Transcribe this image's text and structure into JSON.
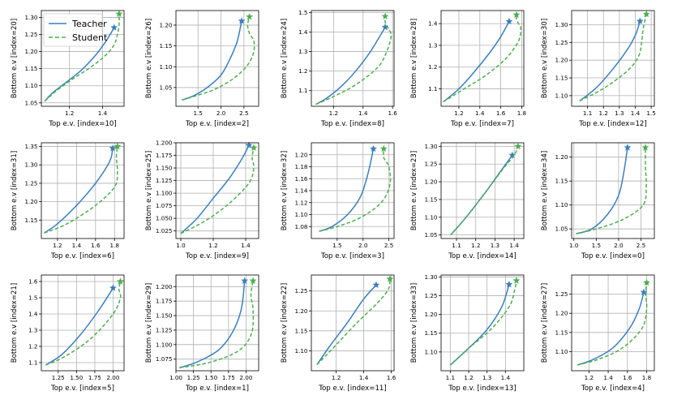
{
  "colors": {
    "teacher": "#3a7fbf",
    "student": "#4caf50"
  },
  "legend": {
    "teacher_label": "Teacher",
    "student_label": "Student"
  },
  "chart_data": [
    {
      "type": "line",
      "xlabel": "Top e.v. [index=10]",
      "ylabel": "Bottom e.v [index=20]",
      "xlim": [
        1.03,
        1.53
      ],
      "ylim": [
        1.04,
        1.32
      ],
      "xticks": [
        1.2,
        1.4
      ],
      "xtick_labels": [
        "1.2",
        "1.4"
      ],
      "yticks": [
        1.05,
        1.1,
        1.15,
        1.2,
        1.25,
        1.3
      ],
      "ytick_labels": [
        "1.05",
        "1.10",
        "1.15",
        "1.20",
        "1.25",
        "1.30"
      ],
      "series": [
        {
          "name": "Teacher",
          "x": [
            1.05,
            1.1,
            1.18,
            1.27,
            1.35,
            1.42,
            1.47
          ],
          "y": [
            1.055,
            1.08,
            1.11,
            1.145,
            1.185,
            1.23,
            1.27
          ]
        },
        {
          "name": "Student",
          "x": [
            1.05,
            1.12,
            1.22,
            1.33,
            1.42,
            1.47,
            1.49,
            1.5,
            1.5
          ],
          "y": [
            1.055,
            1.085,
            1.12,
            1.155,
            1.19,
            1.22,
            1.25,
            1.28,
            1.31
          ]
        }
      ]
    },
    {
      "type": "line",
      "xlabel": "Top e.v. [index=2]",
      "ylabel": "Bottom e.v [index=26]",
      "xlim": [
        1.02,
        2.82
      ],
      "ylim": [
        1.005,
        1.235
      ],
      "xticks": [
        1.5,
        2.0,
        2.5
      ],
      "xtick_labels": [
        "1.5",
        "2.0",
        "2.5"
      ],
      "yticks": [
        1.05,
        1.1,
        1.15,
        1.2
      ],
      "ytick_labels": [
        "1.05",
        "1.10",
        "1.15",
        "1.20"
      ],
      "series": [
        {
          "name": "Teacher",
          "x": [
            1.15,
            1.4,
            1.7,
            2.0,
            2.2,
            2.35,
            2.45
          ],
          "y": [
            1.02,
            1.03,
            1.05,
            1.08,
            1.12,
            1.16,
            1.21
          ]
        },
        {
          "name": "Student",
          "x": [
            1.15,
            1.45,
            1.85,
            2.25,
            2.55,
            2.7,
            2.72,
            2.62,
            2.58,
            2.62
          ],
          "y": [
            1.02,
            1.03,
            1.045,
            1.07,
            1.1,
            1.13,
            1.16,
            1.18,
            1.2,
            1.22
          ]
        }
      ]
    },
    {
      "type": "line",
      "xlabel": "Top e.v. [index=8]",
      "ylabel": "Bottom e.v [index=24]",
      "xlim": [
        1.05,
        1.61
      ],
      "ylim": [
        1.02,
        1.51
      ],
      "xticks": [
        1.2,
        1.4,
        1.6
      ],
      "xtick_labels": [
        "1.2",
        "1.4",
        "1.6"
      ],
      "yticks": [
        1.1,
        1.2,
        1.3,
        1.4,
        1.5
      ],
      "ytick_labels": [
        "1.1",
        "1.2",
        "1.3",
        "1.4",
        "1.5"
      ],
      "series": [
        {
          "name": "Teacher",
          "x": [
            1.08,
            1.15,
            1.25,
            1.35,
            1.45,
            1.55
          ],
          "y": [
            1.03,
            1.06,
            1.12,
            1.2,
            1.3,
            1.425
          ]
        },
        {
          "name": "Student",
          "x": [
            1.08,
            1.2,
            1.35,
            1.5,
            1.56,
            1.59,
            1.57,
            1.55,
            1.55
          ],
          "y": [
            1.03,
            1.07,
            1.13,
            1.22,
            1.3,
            1.38,
            1.42,
            1.45,
            1.48
          ]
        }
      ]
    },
    {
      "type": "line",
      "xlabel": "Top e.v. [index=7]",
      "ylabel": "Bottom e.v [index=28]",
      "xlim": [
        1.03,
        1.82
      ],
      "ylim": [
        1.02,
        1.46
      ],
      "xticks": [
        1.2,
        1.4,
        1.6,
        1.8
      ],
      "xtick_labels": [
        "1.2",
        "1.4",
        "1.6",
        "1.8"
      ],
      "yticks": [
        1.1,
        1.2,
        1.3,
        1.4
      ],
      "ytick_labels": [
        "1.1",
        "1.2",
        "1.3",
        "1.4"
      ],
      "series": [
        {
          "name": "Teacher",
          "x": [
            1.05,
            1.2,
            1.35,
            1.5,
            1.6,
            1.68
          ],
          "y": [
            1.04,
            1.1,
            1.18,
            1.27,
            1.34,
            1.41
          ]
        },
        {
          "name": "Student",
          "x": [
            1.05,
            1.25,
            1.45,
            1.65,
            1.77,
            1.79,
            1.77,
            1.75,
            1.75
          ],
          "y": [
            1.04,
            1.1,
            1.16,
            1.24,
            1.32,
            1.38,
            1.4,
            1.42,
            1.44
          ]
        }
      ]
    },
    {
      "type": "line",
      "xlabel": "Top e.v. [index=12]",
      "ylabel": "Bottom e.v [index=30]",
      "xlim": [
        1.0,
        1.52
      ],
      "ylim": [
        1.07,
        1.34
      ],
      "xticks": [
        1.1,
        1.2,
        1.3,
        1.4,
        1.5
      ],
      "xtick_labels": [
        "1.1",
        "1.2",
        "1.3",
        "1.4",
        "1.5"
      ],
      "yticks": [
        1.1,
        1.15,
        1.2,
        1.25,
        1.3
      ],
      "ytick_labels": [
        "1.10",
        "1.15",
        "1.20",
        "1.25",
        "1.30"
      ],
      "series": [
        {
          "name": "Teacher",
          "x": [
            1.05,
            1.15,
            1.25,
            1.35,
            1.4,
            1.43
          ],
          "y": [
            1.085,
            1.12,
            1.17,
            1.23,
            1.27,
            1.31
          ]
        },
        {
          "name": "Student",
          "x": [
            1.05,
            1.2,
            1.35,
            1.42,
            1.44,
            1.45,
            1.47
          ],
          "y": [
            1.085,
            1.12,
            1.17,
            1.21,
            1.25,
            1.29,
            1.33
          ]
        }
      ]
    },
    {
      "type": "line",
      "xlabel": "Top e.v. [index=6]",
      "ylabel": "Bottom e.v [index=31]",
      "xlim": [
        1.03,
        1.9
      ],
      "ylim": [
        1.1,
        1.36
      ],
      "xticks": [
        1.2,
        1.4,
        1.6,
        1.8
      ],
      "xtick_labels": [
        "1.2",
        "1.4",
        "1.6",
        "1.8"
      ],
      "yticks": [
        1.15,
        1.2,
        1.25,
        1.3,
        1.35
      ],
      "ytick_labels": [
        "1.15",
        "1.20",
        "1.25",
        "1.30",
        "1.35"
      ],
      "series": [
        {
          "name": "Teacher",
          "x": [
            1.06,
            1.2,
            1.4,
            1.6,
            1.75,
            1.78
          ],
          "y": [
            1.115,
            1.14,
            1.19,
            1.25,
            1.31,
            1.345
          ]
        },
        {
          "name": "Student",
          "x": [
            1.06,
            1.3,
            1.6,
            1.8,
            1.83,
            1.82,
            1.83
          ],
          "y": [
            1.115,
            1.14,
            1.19,
            1.24,
            1.28,
            1.32,
            1.35
          ]
        }
      ]
    },
    {
      "type": "line",
      "xlabel": "Top e.v. [index=9]",
      "ylabel": "Bottom e.v [index=25]",
      "xlim": [
        0.97,
        1.48
      ],
      "ylim": [
        1.01,
        1.2
      ],
      "xticks": [
        1.0,
        1.2,
        1.4
      ],
      "xtick_labels": [
        "1.0",
        "1.2",
        "1.4"
      ],
      "yticks": [
        1.025,
        1.05,
        1.075,
        1.1,
        1.125,
        1.15,
        1.175,
        1.2
      ],
      "ytick_labels": [
        "1.025",
        "1.050",
        "1.075",
        "1.100",
        "1.125",
        "1.150",
        "1.175",
        "1.200"
      ],
      "series": [
        {
          "name": "Teacher",
          "x": [
            1.0,
            1.1,
            1.2,
            1.3,
            1.38,
            1.42
          ],
          "y": [
            1.02,
            1.05,
            1.09,
            1.13,
            1.17,
            1.195
          ]
        },
        {
          "name": "Student",
          "x": [
            1.0,
            1.15,
            1.3,
            1.42,
            1.45,
            1.44,
            1.45
          ],
          "y": [
            1.02,
            1.045,
            1.08,
            1.12,
            1.15,
            1.17,
            1.19
          ]
        }
      ]
    },
    {
      "type": "line",
      "xlabel": "Top e.v. [index=3]",
      "ylabel": "Bottom e.v [index=32]",
      "xlim": [
        1.0,
        2.6
      ],
      "ylim": [
        1.06,
        1.22
      ],
      "xticks": [
        1.5,
        2.0,
        2.5
      ],
      "xtick_labels": [
        "1.5",
        "2.0",
        "2.5"
      ],
      "yticks": [
        1.08,
        1.1,
        1.12,
        1.14,
        1.16,
        1.18,
        1.2
      ],
      "ytick_labels": [
        "1.08",
        "1.10",
        "1.12",
        "1.14",
        "1.16",
        "1.18",
        "1.20"
      ],
      "series": [
        {
          "name": "Teacher",
          "x": [
            1.15,
            1.4,
            1.7,
            1.95,
            2.1,
            2.2
          ],
          "y": [
            1.072,
            1.08,
            1.1,
            1.13,
            1.17,
            1.21
          ]
        },
        {
          "name": "Student",
          "x": [
            1.15,
            1.5,
            1.95,
            2.35,
            2.52,
            2.5,
            2.4,
            2.4
          ],
          "y": [
            1.072,
            1.08,
            1.095,
            1.12,
            1.15,
            1.18,
            1.195,
            1.21
          ]
        }
      ]
    },
    {
      "type": "line",
      "xlabel": "Top e.v. [index=14]",
      "ylabel": "Bottom e.v [index=23]",
      "xlim": [
        1.02,
        1.45
      ],
      "ylim": [
        1.04,
        1.31
      ],
      "xticks": [
        1.1,
        1.2,
        1.3,
        1.4
      ],
      "xtick_labels": [
        "1.1",
        "1.2",
        "1.3",
        "1.4"
      ],
      "yticks": [
        1.05,
        1.1,
        1.15,
        1.2,
        1.25,
        1.3
      ],
      "ytick_labels": [
        "1.05",
        "1.10",
        "1.15",
        "1.20",
        "1.25",
        "1.30"
      ],
      "series": [
        {
          "name": "Teacher",
          "x": [
            1.07,
            1.15,
            1.25,
            1.33,
            1.39
          ],
          "y": [
            1.05,
            1.1,
            1.17,
            1.23,
            1.275
          ]
        },
        {
          "name": "Student",
          "x": [
            1.07,
            1.15,
            1.25,
            1.34,
            1.4,
            1.42
          ],
          "y": [
            1.05,
            1.1,
            1.17,
            1.235,
            1.275,
            1.3
          ]
        }
      ]
    },
    {
      "type": "line",
      "xlabel": "Top e.v. [index=0]",
      "ylabel": "Bottom e.v [index=34]",
      "xlim": [
        0.95,
        2.8
      ],
      "ylim": [
        1.03,
        1.23
      ],
      "xticks": [
        1.0,
        1.5,
        2.0,
        2.5
      ],
      "xtick_labels": [
        "1.0",
        "1.5",
        "2.0",
        "2.5"
      ],
      "yticks": [
        1.05,
        1.1,
        1.15,
        1.2
      ],
      "ytick_labels": [
        "1.05",
        "1.10",
        "1.15",
        "1.20"
      ],
      "series": [
        {
          "name": "Teacher",
          "x": [
            1.05,
            1.4,
            1.75,
            2.0,
            2.12,
            2.2
          ],
          "y": [
            1.04,
            1.05,
            1.08,
            1.12,
            1.17,
            1.22
          ]
        },
        {
          "name": "Student",
          "x": [
            1.05,
            1.5,
            2.1,
            2.55,
            2.62,
            2.6,
            2.6
          ],
          "y": [
            1.04,
            1.05,
            1.07,
            1.1,
            1.14,
            1.18,
            1.22
          ]
        }
      ]
    },
    {
      "type": "line",
      "xlabel": "Top e.v. [index=5]",
      "ylabel": "Bottom e.v [index=21]",
      "xlim": [
        1.02,
        2.15
      ],
      "ylim": [
        1.05,
        1.64
      ],
      "xticks": [
        1.25,
        1.5,
        1.75,
        2.0
      ],
      "xtick_labels": [
        "1.25",
        "1.50",
        "1.75",
        "2.00"
      ],
      "yticks": [
        1.1,
        1.2,
        1.3,
        1.4,
        1.5,
        1.6
      ],
      "ytick_labels": [
        "1.1",
        "1.2",
        "1.3",
        "1.4",
        "1.5",
        "1.6"
      ],
      "series": [
        {
          "name": "Teacher",
          "x": [
            1.08,
            1.3,
            1.55,
            1.8,
            2.0
          ],
          "y": [
            1.085,
            1.15,
            1.27,
            1.42,
            1.56
          ]
        },
        {
          "name": "Student",
          "x": [
            1.08,
            1.35,
            1.7,
            2.0,
            2.1,
            2.08,
            2.1
          ],
          "y": [
            1.085,
            1.14,
            1.25,
            1.4,
            1.5,
            1.55,
            1.6
          ]
        }
      ]
    },
    {
      "type": "line",
      "xlabel": "Top e.v. [index=1]",
      "ylabel": "Bottom e.v [index=29]",
      "xlim": [
        1.0,
        2.18
      ],
      "ylim": [
        1.055,
        1.22
      ],
      "xticks": [
        1.0,
        1.25,
        1.5,
        1.75,
        2.0
      ],
      "xtick_labels": [
        "1.00",
        "1.25",
        "1.50",
        "1.75",
        "2.00"
      ],
      "yticks": [
        1.075,
        1.1,
        1.125,
        1.15,
        1.175,
        1.2
      ],
      "ytick_labels": [
        "1.075",
        "1.100",
        "1.125",
        "1.150",
        "1.175",
        "1.200"
      ],
      "series": [
        {
          "name": "Teacher",
          "x": [
            1.05,
            1.3,
            1.6,
            1.8,
            1.93,
            1.98
          ],
          "y": [
            1.06,
            1.07,
            1.09,
            1.12,
            1.16,
            1.21
          ]
        },
        {
          "name": "Student",
          "x": [
            1.05,
            1.5,
            1.9,
            2.08,
            2.1,
            2.07,
            2.1
          ],
          "y": [
            1.06,
            1.07,
            1.09,
            1.12,
            1.16,
            1.185,
            1.21
          ]
        }
      ]
    },
    {
      "type": "line",
      "xlabel": "Top e.v. [index=11]",
      "ylabel": "Bottom e.v [index=22]",
      "xlim": [
        1.02,
        1.62
      ],
      "ylim": [
        1.05,
        1.29
      ],
      "xticks": [
        1.2,
        1.4,
        1.6
      ],
      "xtick_labels": [
        "1.2",
        "1.4",
        "1.6"
      ],
      "yticks": [
        1.1,
        1.15,
        1.2,
        1.25
      ],
      "ytick_labels": [
        "1.10",
        "1.15",
        "1.20",
        "1.25"
      ],
      "series": [
        {
          "name": "Teacher",
          "x": [
            1.06,
            1.15,
            1.28,
            1.4,
            1.49
          ],
          "y": [
            1.065,
            1.11,
            1.17,
            1.23,
            1.265
          ]
        },
        {
          "name": "Student",
          "x": [
            1.06,
            1.2,
            1.35,
            1.5,
            1.58,
            1.59
          ],
          "y": [
            1.065,
            1.115,
            1.17,
            1.22,
            1.255,
            1.28
          ]
        }
      ]
    },
    {
      "type": "line",
      "xlabel": "Top e.v. [index=13]",
      "ylabel": "Bottom e.v [index=33]",
      "xlim": [
        1.05,
        1.5
      ],
      "ylim": [
        1.05,
        1.305
      ],
      "xticks": [
        1.1,
        1.2,
        1.3,
        1.4
      ],
      "xtick_labels": [
        "1.1",
        "1.2",
        "1.3",
        "1.4"
      ],
      "yticks": [
        1.1,
        1.15,
        1.2,
        1.25,
        1.3
      ],
      "ytick_labels": [
        "1.10",
        "1.15",
        "1.20",
        "1.25",
        "1.30"
      ],
      "series": [
        {
          "name": "Teacher",
          "x": [
            1.1,
            1.2,
            1.3,
            1.38,
            1.42
          ],
          "y": [
            1.065,
            1.11,
            1.16,
            1.22,
            1.28
          ]
        },
        {
          "name": "Student",
          "x": [
            1.1,
            1.2,
            1.32,
            1.42,
            1.45,
            1.46
          ],
          "y": [
            1.065,
            1.11,
            1.16,
            1.22,
            1.265,
            1.29
          ]
        }
      ]
    },
    {
      "type": "line",
      "xlabel": "Top e.v. [index=4]",
      "ylabel": "Bottom e.v [index=27]",
      "xlim": [
        1.02,
        1.88
      ],
      "ylim": [
        1.05,
        1.3
      ],
      "xticks": [
        1.2,
        1.4,
        1.6,
        1.8
      ],
      "xtick_labels": [
        "1.2",
        "1.4",
        "1.6",
        "1.8"
      ],
      "yticks": [
        1.1,
        1.15,
        1.2,
        1.25
      ],
      "ytick_labels": [
        "1.10",
        "1.15",
        "1.20",
        "1.25"
      ],
      "series": [
        {
          "name": "Teacher",
          "x": [
            1.08,
            1.25,
            1.45,
            1.62,
            1.72,
            1.77
          ],
          "y": [
            1.065,
            1.08,
            1.11,
            1.16,
            1.21,
            1.255
          ]
        },
        {
          "name": "Student",
          "x": [
            1.08,
            1.3,
            1.55,
            1.75,
            1.8,
            1.79,
            1.8
          ],
          "y": [
            1.065,
            1.08,
            1.11,
            1.16,
            1.21,
            1.25,
            1.28
          ]
        }
      ]
    }
  ]
}
